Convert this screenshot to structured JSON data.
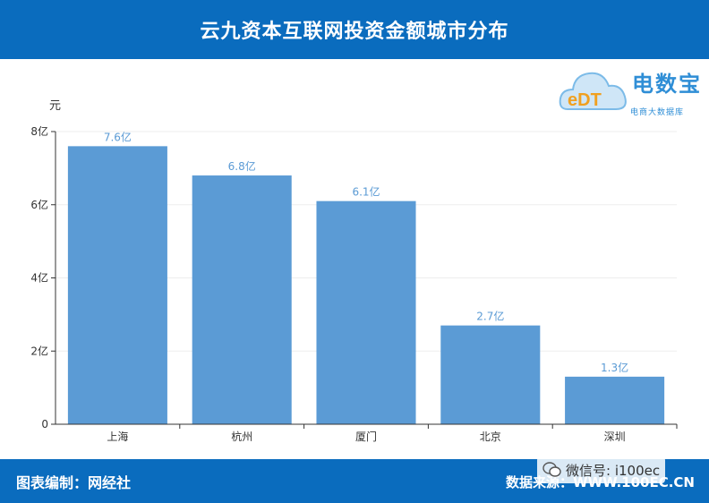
{
  "header": {
    "title": "云九资本互联网投资金额城市分布"
  },
  "logo": {
    "brand": "电数宝",
    "sub": "电商大数据库",
    "mark": "eDT"
  },
  "watermark": {
    "text": "微信号: i100ec"
  },
  "footer": {
    "left": "图表编制：网经社",
    "right": "数据来源：WWW.100EC.CN"
  },
  "colors": {
    "bar": "#5b9bd5",
    "header": "#0a6cbe",
    "label": "#5b9bd5"
  },
  "chart_data": {
    "type": "bar",
    "ylabel": "元",
    "categories": [
      "上海",
      "杭州",
      "厦门",
      "北京",
      "深圳"
    ],
    "values": [
      7.6,
      6.8,
      6.1,
      2.7,
      1.3
    ],
    "value_labels": [
      "7.6亿",
      "6.8亿",
      "6.1亿",
      "2.7亿",
      "1.3亿"
    ],
    "yticks": [
      "0",
      "2亿",
      "4亿",
      "6亿",
      "8亿"
    ],
    "ylim": [
      0,
      8
    ],
    "grid": true
  }
}
